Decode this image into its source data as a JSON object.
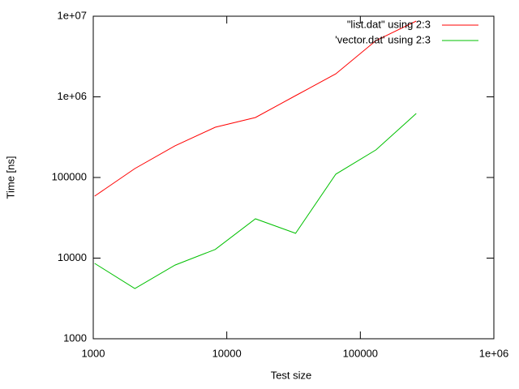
{
  "chart_data": {
    "type": "line",
    "xlabel": "Test size",
    "ylabel": "Time [ns]",
    "x": [
      1024,
      2048,
      4096,
      8192,
      16384,
      32768,
      65536,
      131072,
      262144
    ],
    "series": [
      {
        "name": "\"list.dat\" using 2:3",
        "color": "#ff0000",
        "values": [
          58700,
          129000,
          247000,
          420000,
          554000,
          1035000,
          1930000,
          4990000,
          8700000
        ]
      },
      {
        "name": "'vector.dat' using 2:3",
        "color": "#00c000",
        "values": [
          8600,
          4200,
          8200,
          12800,
          30700,
          20300,
          110000,
          220000,
          622000
        ]
      }
    ],
    "xscale": "log",
    "yscale": "log",
    "xlim": [
      1000,
      1000000
    ],
    "ylim": [
      1000,
      10000000
    ],
    "xticks": [
      1000,
      10000,
      100000,
      {
        "value": 1000000,
        "label": "1e+06"
      }
    ],
    "yticks": [
      1000,
      10000,
      100000,
      {
        "value": 1000000,
        "label": "1e+06"
      },
      {
        "value": 10000000,
        "label": "1e+07"
      }
    ],
    "grid": false,
    "legend": "upper right"
  }
}
